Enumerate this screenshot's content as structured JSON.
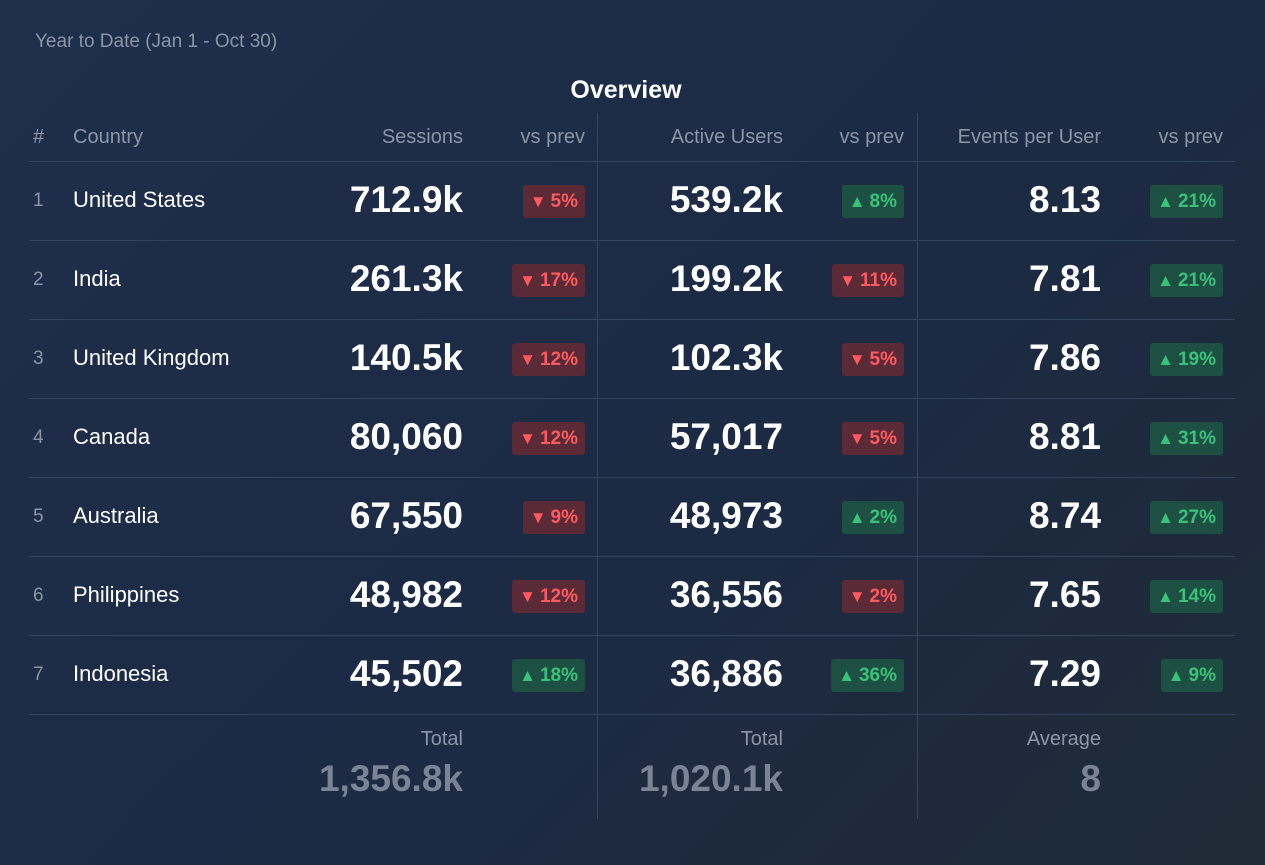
{
  "subtitle": "Year to Date (Jan 1 - Oct 30)",
  "title": "Overview",
  "colors": {
    "up": "#3ac27a",
    "down": "#ff5a5f",
    "up_bg": "#1d5043",
    "down_bg": "#5a2a37"
  },
  "columns": {
    "num": "#",
    "country": "Country",
    "sessions": "Sessions",
    "sessions_vs": "vs prev",
    "users": "Active Users",
    "users_vs": "vs prev",
    "epu": "Events per User",
    "epu_vs": "vs prev"
  },
  "rows": [
    {
      "num": "1",
      "country": "United States",
      "sessions": "712.9k",
      "sessions_vs": {
        "dir": "down",
        "icon": "triangle-down-icon",
        "text": "5%"
      },
      "users": "539.2k",
      "users_vs": {
        "dir": "up",
        "icon": "triangle-up-icon",
        "text": "8%"
      },
      "epu": "8.13",
      "epu_vs": {
        "dir": "up",
        "icon": "triangle-up-icon",
        "text": "21%"
      }
    },
    {
      "num": "2",
      "country": "India",
      "sessions": "261.3k",
      "sessions_vs": {
        "dir": "down",
        "icon": "triangle-down-icon",
        "text": "17%"
      },
      "users": "199.2k",
      "users_vs": {
        "dir": "down",
        "icon": "triangle-down-icon",
        "text": "11%"
      },
      "epu": "7.81",
      "epu_vs": {
        "dir": "up",
        "icon": "triangle-up-icon",
        "text": "21%"
      }
    },
    {
      "num": "3",
      "country": "United Kingdom",
      "sessions": "140.5k",
      "sessions_vs": {
        "dir": "down",
        "icon": "triangle-down-icon",
        "text": "12%"
      },
      "users": "102.3k",
      "users_vs": {
        "dir": "down",
        "icon": "triangle-down-icon",
        "text": "5%"
      },
      "epu": "7.86",
      "epu_vs": {
        "dir": "up",
        "icon": "triangle-up-icon",
        "text": "19%"
      }
    },
    {
      "num": "4",
      "country": "Canada",
      "sessions": "80,060",
      "sessions_vs": {
        "dir": "down",
        "icon": "triangle-down-icon",
        "text": "12%"
      },
      "users": "57,017",
      "users_vs": {
        "dir": "down",
        "icon": "triangle-down-icon",
        "text": "5%"
      },
      "epu": "8.81",
      "epu_vs": {
        "dir": "up",
        "icon": "triangle-up-icon",
        "text": "31%"
      }
    },
    {
      "num": "5",
      "country": "Australia",
      "sessions": "67,550",
      "sessions_vs": {
        "dir": "down",
        "icon": "triangle-down-icon",
        "text": "9%"
      },
      "users": "48,973",
      "users_vs": {
        "dir": "up",
        "icon": "triangle-up-icon",
        "text": "2%"
      },
      "epu": "8.74",
      "epu_vs": {
        "dir": "up",
        "icon": "triangle-up-icon",
        "text": "27%"
      }
    },
    {
      "num": "6",
      "country": "Philippines",
      "sessions": "48,982",
      "sessions_vs": {
        "dir": "down",
        "icon": "triangle-down-icon",
        "text": "12%"
      },
      "users": "36,556",
      "users_vs": {
        "dir": "down",
        "icon": "triangle-down-icon",
        "text": "2%"
      },
      "epu": "7.65",
      "epu_vs": {
        "dir": "up",
        "icon": "triangle-up-icon",
        "text": "14%"
      }
    },
    {
      "num": "7",
      "country": "Indonesia",
      "sessions": "45,502",
      "sessions_vs": {
        "dir": "up",
        "icon": "triangle-up-icon",
        "text": "18%"
      },
      "users": "36,886",
      "users_vs": {
        "dir": "up",
        "icon": "triangle-up-icon",
        "text": "36%"
      },
      "epu": "7.29",
      "epu_vs": {
        "dir": "up",
        "icon": "triangle-up-icon",
        "text": "9%"
      }
    }
  ],
  "footer": {
    "sessions_label": "Total",
    "sessions_value": "1,356.8k",
    "users_label": "Total",
    "users_value": "1,020.1k",
    "epu_label": "Average",
    "epu_value": "8"
  }
}
